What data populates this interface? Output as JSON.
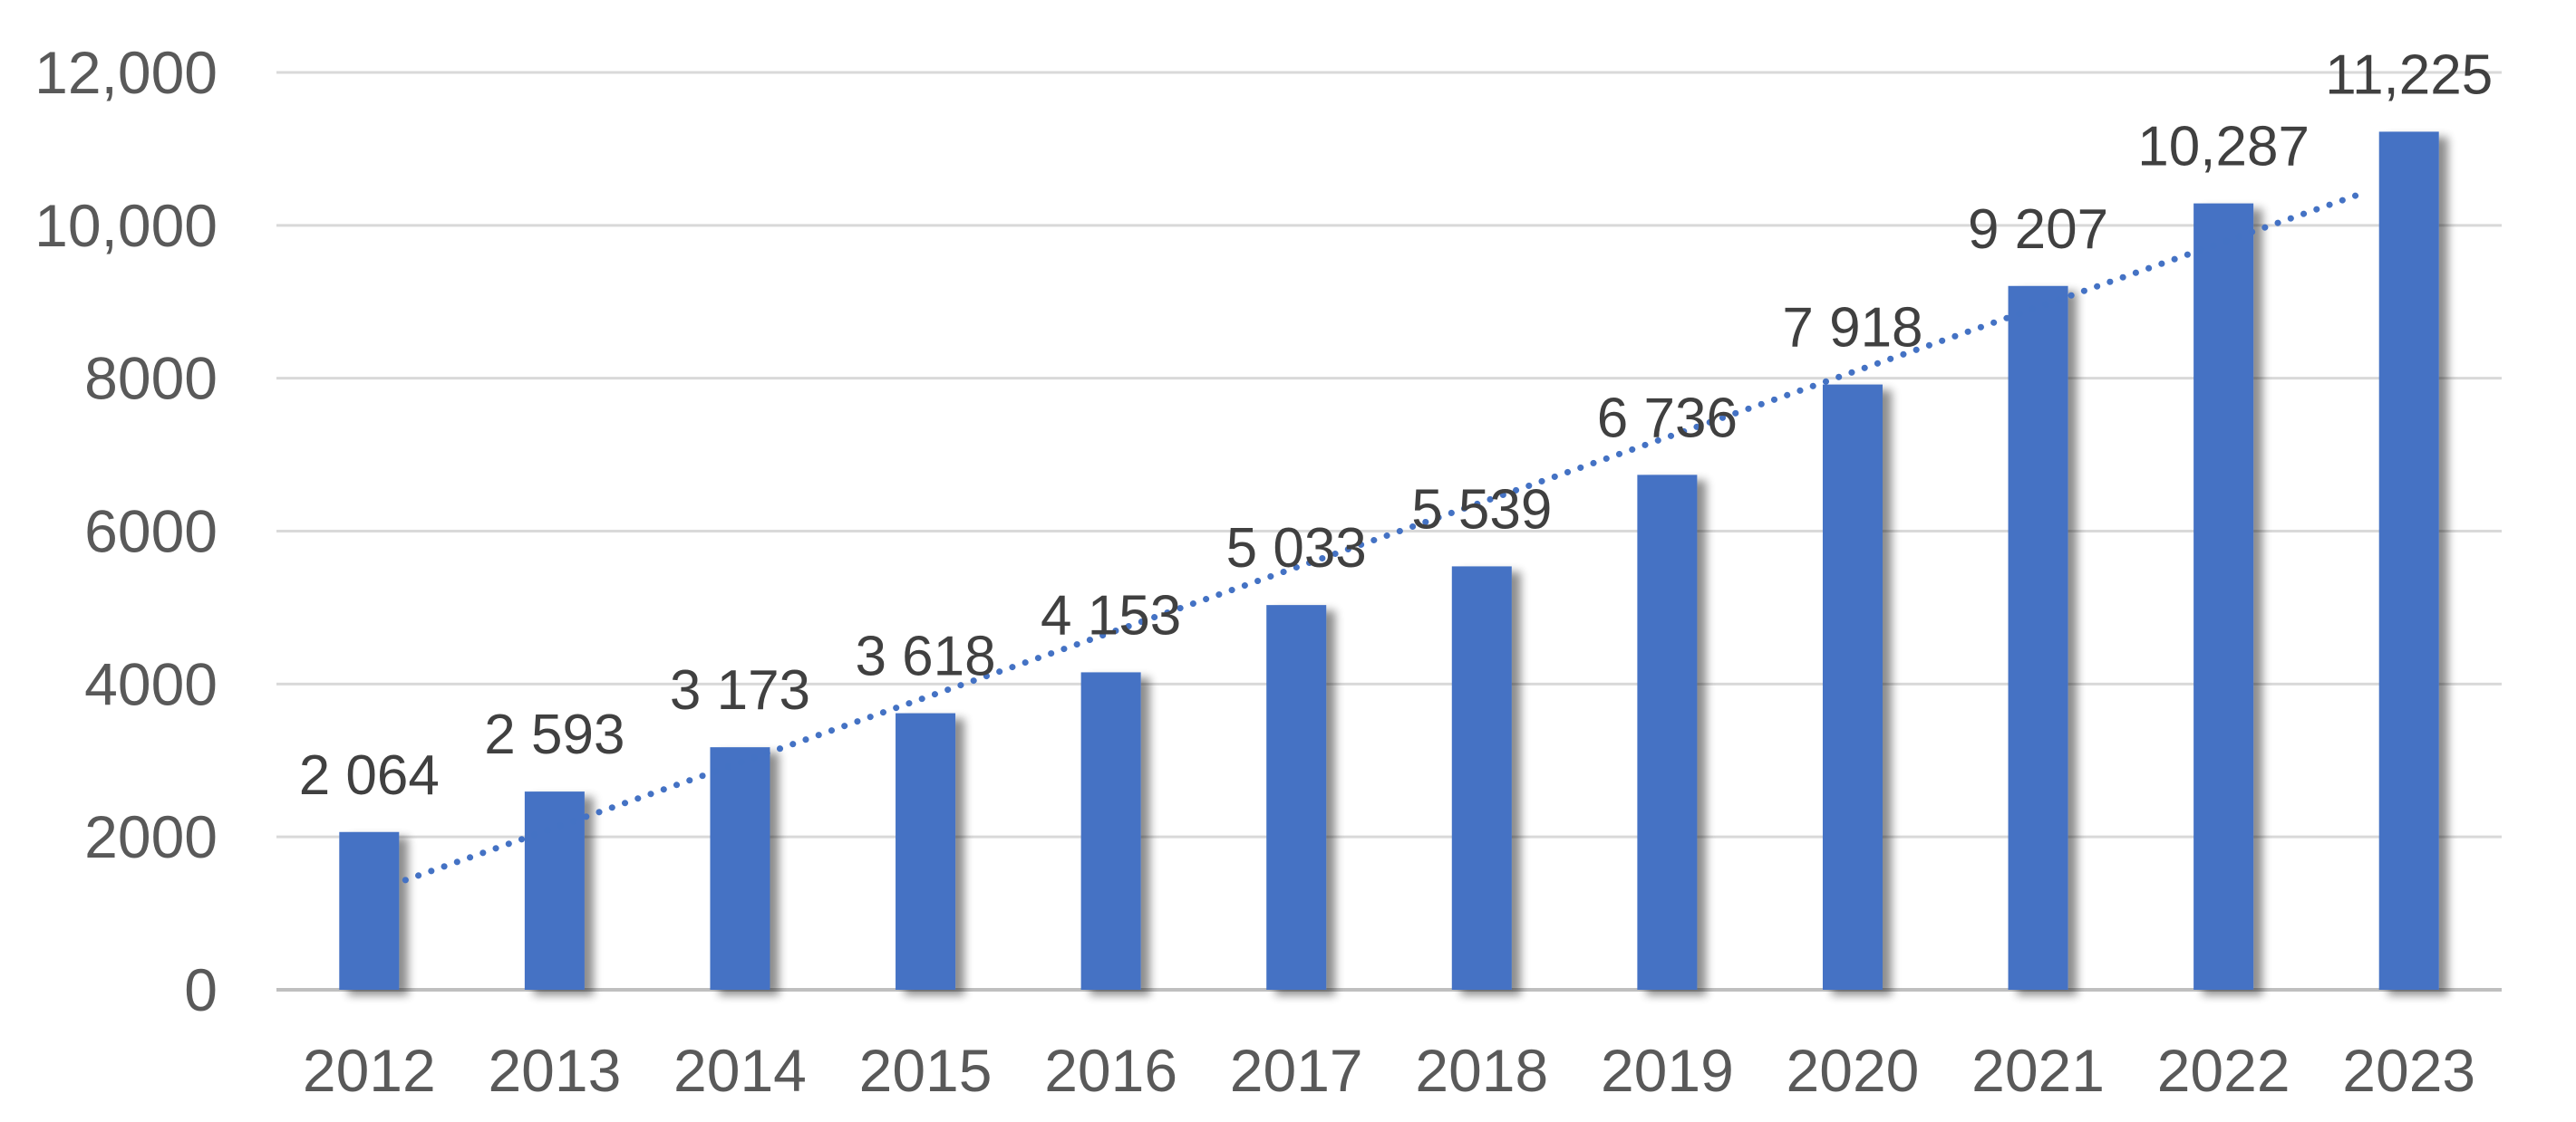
{
  "chart_data": {
    "type": "bar",
    "categories": [
      "2012",
      "2013",
      "2014",
      "2015",
      "2016",
      "2017",
      "2018",
      "2019",
      "2020",
      "2021",
      "2022",
      "2023"
    ],
    "values": [
      2064,
      2593,
      3173,
      3618,
      4153,
      5033,
      5539,
      6736,
      7918,
      9207,
      10287,
      11225
    ],
    "data_labels": [
      "2 064",
      "2 593",
      "3 173",
      "3 618",
      "4 153",
      "5 033",
      "5 539",
      "6 736",
      "7 918",
      "9 207",
      "10,287",
      "11,225"
    ],
    "y_ticks": [
      {
        "value": 0,
        "label": "0"
      },
      {
        "value": 2000,
        "label": "2000"
      },
      {
        "value": 4000,
        "label": "4000"
      },
      {
        "value": 6000,
        "label": "6000"
      },
      {
        "value": 8000,
        "label": "8000"
      },
      {
        "value": 10000,
        "label": "10,000"
      },
      {
        "value": 12000,
        "label": "12,000"
      }
    ],
    "ylim": [
      0,
      12000
    ],
    "grid": true,
    "legend": "none",
    "trendline": {
      "type": "linear",
      "style": "dotted"
    },
    "colors": {
      "bar": "#4472C4",
      "trendline": "#4472C4",
      "grid": "#D9D9D9",
      "tick_text": "#595959",
      "label_text": "#404040"
    }
  }
}
